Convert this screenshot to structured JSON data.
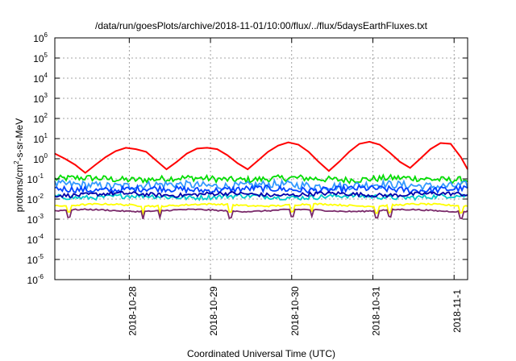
{
  "chart_data": {
    "type": "line",
    "title": "/data/run/goesPlots/archive/2018-11-01/10:00/flux/../flux/5daysEarthFluxes.txt",
    "xlabel": "Coordinated Universal Time (UTC)",
    "ylabel_parts": {
      "base": "protons/cm",
      "sup": "2",
      "rest": "-s-sr-MeV"
    },
    "yscale": "log",
    "x_start": "2018-10-27 02:00",
    "x_end": "2018-11-01 04:00",
    "ylim": [
      1e-06,
      1000000.0
    ],
    "grid": true,
    "y_ticks": [
      {
        "exp": -6,
        "label": "10",
        "sup": "-6"
      },
      {
        "exp": -5,
        "label": "10",
        "sup": "-5"
      },
      {
        "exp": -4,
        "label": "10",
        "sup": "-4"
      },
      {
        "exp": -3,
        "label": "10",
        "sup": "-3"
      },
      {
        "exp": -2,
        "label": "10",
        "sup": "-2"
      },
      {
        "exp": -1,
        "label": "10",
        "sup": "-1"
      },
      {
        "exp": 0,
        "label": "10",
        "sup": "0"
      },
      {
        "exp": 1,
        "label": "10",
        "sup": "1"
      },
      {
        "exp": 2,
        "label": "10",
        "sup": "2"
      },
      {
        "exp": 3,
        "label": "10",
        "sup": "3"
      },
      {
        "exp": 4,
        "label": "10",
        "sup": "4"
      },
      {
        "exp": 5,
        "label": "10",
        "sup": "5"
      },
      {
        "exp": 6,
        "label": "10",
        "sup": "6"
      }
    ],
    "x_ticks": [
      {
        "date": "2018-10-28",
        "label": "2018-10-28"
      },
      {
        "date": "2018-10-29",
        "label": "2018-10-29"
      },
      {
        "date": "2018-10-30",
        "label": "2018-10-30"
      },
      {
        "date": "2018-10-31",
        "label": "2018-10-31"
      },
      {
        "date": "2018-11-01",
        "label": "2018-11-1"
      }
    ],
    "series": [
      {
        "color": "#ff0000",
        "x": [
          "2018-10-27 02:00",
          "2018-10-27 05:00",
          "2018-10-27 08:00",
          "2018-10-27 11:00",
          "2018-10-27 14:00",
          "2018-10-27 17:00",
          "2018-10-27 20:00",
          "2018-10-27 23:00",
          "2018-10-28 02:00",
          "2018-10-28 05:00",
          "2018-10-28 08:00",
          "2018-10-28 11:00",
          "2018-10-28 14:00",
          "2018-10-28 17:00",
          "2018-10-28 20:00",
          "2018-10-28 23:00",
          "2018-10-29 02:00",
          "2018-10-29 05:00",
          "2018-10-29 08:00",
          "2018-10-29 11:00",
          "2018-10-29 14:00",
          "2018-10-29 17:00",
          "2018-10-29 20:00",
          "2018-10-29 23:00",
          "2018-10-30 02:00",
          "2018-10-30 05:00",
          "2018-10-30 08:00",
          "2018-10-30 11:00",
          "2018-10-30 14:00",
          "2018-10-30 17:00",
          "2018-10-30 20:00",
          "2018-10-30 23:00",
          "2018-10-31 02:00",
          "2018-10-31 05:00",
          "2018-10-31 08:00",
          "2018-10-31 11:00",
          "2018-10-31 14:00",
          "2018-10-31 17:00",
          "2018-10-31 20:00",
          "2018-10-31 23:00",
          "2018-11-01 02:00",
          "2018-11-01 04:00"
        ],
        "values": [
          1.8,
          1.0,
          0.5,
          0.2,
          0.5,
          1.2,
          2.4,
          3.5,
          3.0,
          2.2,
          0.8,
          0.3,
          0.7,
          1.8,
          3.2,
          3.5,
          3.0,
          1.5,
          0.6,
          0.3,
          0.8,
          2.2,
          4.5,
          6.5,
          5.0,
          2.2,
          0.7,
          0.25,
          0.7,
          2.2,
          5.5,
          7.0,
          5.0,
          2.0,
          0.7,
          0.35,
          1.0,
          3.0,
          6.0,
          5.5,
          1.2,
          0.3
        ]
      }
    ],
    "band_series": [
      {
        "color": "#00dd00",
        "base": 0.1,
        "spread": 0.16,
        "dips": false
      },
      {
        "color": "#3399ff",
        "base": 0.048,
        "spread": 0.2,
        "dips": false
      },
      {
        "color": "#0044ff",
        "base": 0.03,
        "spread": 0.16,
        "dips": false
      },
      {
        "color": "#00cccc",
        "base": 0.013,
        "spread": 0.12,
        "dips": false
      },
      {
        "color": "#0000aa",
        "base": 0.017,
        "spread": 0.1,
        "dips": false
      },
      {
        "color": "#ffff00",
        "base": 0.005,
        "spread": 0.04,
        "dips": true
      },
      {
        "color": "#7a2a6a",
        "base": 0.0027,
        "spread": 0.03,
        "dips": true
      }
    ],
    "dip_times": [
      "2018-10-27 06:00",
      "2018-10-28 04:00",
      "2018-10-28 09:00",
      "2018-10-29 06:00",
      "2018-10-30 00:00",
      "2018-10-30 06:00",
      "2018-10-31 01:00",
      "2018-10-31 05:00",
      "2018-11-01 02:00"
    ]
  }
}
